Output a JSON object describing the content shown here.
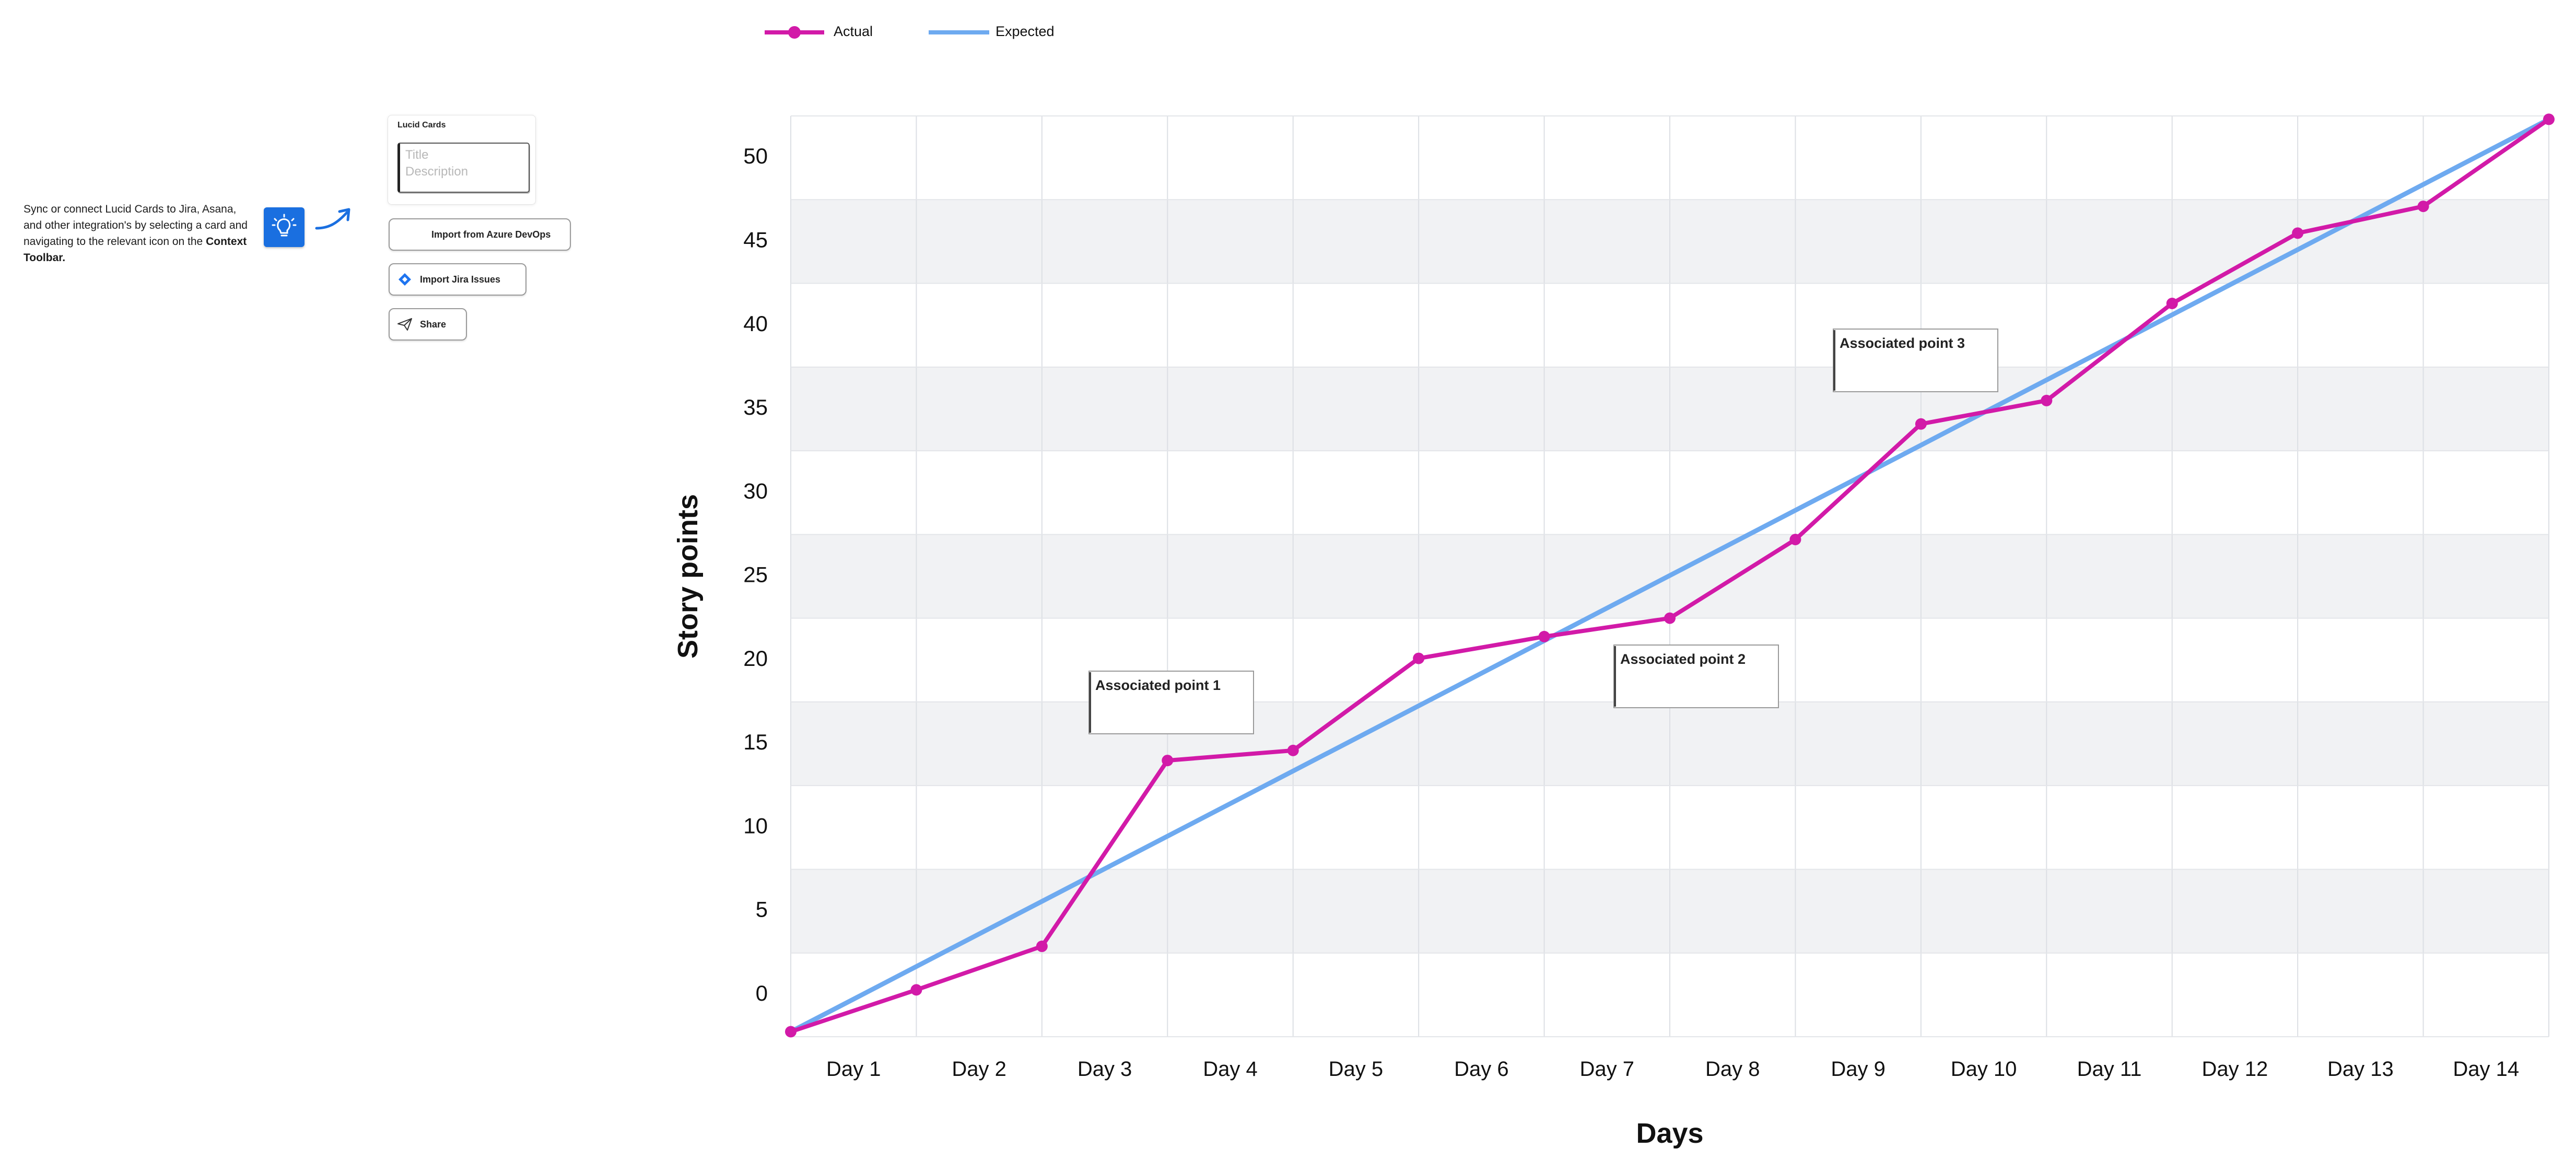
{
  "sidebar": {
    "instructions_text": "Sync or connect Lucid Cards to Jira, Asana, and other integration's by selecting a card and navigating to the relevant icon on the",
    "instructions_bold": "Context Toolbar.",
    "bulb_icon": "lightbulb-icon",
    "card": {
      "title": "Lucid Cards",
      "title_placeholder": "Title",
      "description_placeholder": "Description"
    },
    "buttons": [
      {
        "label": "Import from Azure DevOps",
        "icon": "azure-devops-icon"
      },
      {
        "label": "Import Jira Issues",
        "icon": "jira-icon"
      },
      {
        "label": "Share",
        "icon": "paper-plane-icon"
      }
    ]
  },
  "chart_data": {
    "type": "line",
    "xlabel": "Days",
    "ylabel": "Story points",
    "categories": [
      "Day 1",
      "Day 2",
      "Day 3",
      "Day 4",
      "Day 5",
      "Day 6",
      "Day 7",
      "Day 8",
      "Day 9",
      "Day 10",
      "Day 11",
      "Day 12",
      "Day 13",
      "Day 14"
    ],
    "yticks": [
      0,
      5,
      10,
      15,
      20,
      25,
      30,
      35,
      40,
      45,
      50
    ],
    "ylim": [
      -2.5,
      52.5
    ],
    "grid": true,
    "legend_position": "top-left",
    "series": [
      {
        "name": "Actual",
        "color": "#d21aa8",
        "marker": "circle",
        "x": [
          0,
          1,
          2,
          3,
          4,
          5,
          6,
          7,
          8,
          9,
          10,
          11,
          12,
          13,
          14
        ],
        "values": [
          -2.2,
          0.3,
          2.9,
          14,
          14.6,
          20.1,
          21.4,
          22.5,
          27.2,
          34.1,
          35.5,
          41.3,
          45.5,
          47.1,
          52.3
        ]
      },
      {
        "name": "Expected",
        "color": "#6eaaf0",
        "x": [
          0,
          14
        ],
        "values": [
          -2.2,
          52.3
        ]
      }
    ],
    "annotations": [
      {
        "text": "Associated point 1"
      },
      {
        "text": "Associated point 2"
      },
      {
        "text": "Associated point 3"
      }
    ]
  }
}
